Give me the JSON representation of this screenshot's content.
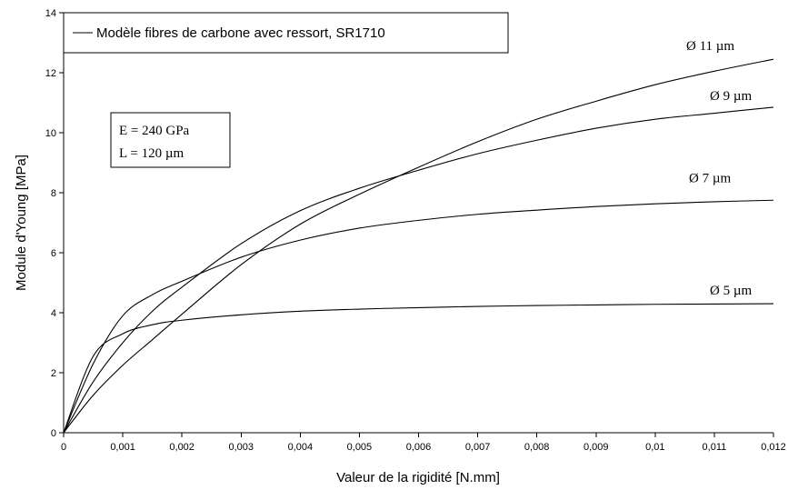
{
  "chart_data": {
    "type": "line",
    "xlabel": "Valeur de la rigidité [N.mm]",
    "ylabel": "Module d'Young [MPa]",
    "xlim": [
      0,
      0.012
    ],
    "ylim": [
      0,
      14
    ],
    "x_ticks": [
      {
        "value": 0,
        "label": "0"
      },
      {
        "value": 0.001,
        "label": "0,001"
      },
      {
        "value": 0.002,
        "label": "0,002"
      },
      {
        "value": 0.003,
        "label": "0,003"
      },
      {
        "value": 0.004,
        "label": "0,004"
      },
      {
        "value": 0.005,
        "label": "0,005"
      },
      {
        "value": 0.006,
        "label": "0,006"
      },
      {
        "value": 0.007,
        "label": "0,007"
      },
      {
        "value": 0.008,
        "label": "0,008"
      },
      {
        "value": 0.009,
        "label": "0,009"
      },
      {
        "value": 0.01,
        "label": "0,01"
      },
      {
        "value": 0.011,
        "label": "0,011"
      },
      {
        "value": 0.012,
        "label": "0,012"
      }
    ],
    "y_ticks": [
      {
        "value": 0,
        "label": "0"
      },
      {
        "value": 2,
        "label": "2"
      },
      {
        "value": 4,
        "label": "4"
      },
      {
        "value": 6,
        "label": "6"
      },
      {
        "value": 8,
        "label": "8"
      },
      {
        "value": 10,
        "label": "10"
      },
      {
        "value": 12,
        "label": "12"
      },
      {
        "value": 14,
        "label": "14"
      }
    ],
    "grid": false,
    "legend": {
      "position": "top-left",
      "entries": [
        "Modèle fibres de carbone avec ressort, SR1710"
      ]
    },
    "annotation_lines": [
      "E = 240 GPa",
      "L = 120 µm"
    ],
    "x": [
      0,
      0.0005,
      0.001,
      0.0015,
      0.002,
      0.003,
      0.004,
      0.005,
      0.006,
      0.007,
      0.008,
      0.009,
      0.01,
      0.011,
      0.012
    ],
    "series": [
      {
        "name": "Ø 5 µm",
        "values": [
          0,
          2.55,
          3.3,
          3.6,
          3.75,
          3.93,
          4.05,
          4.12,
          4.17,
          4.21,
          4.24,
          4.26,
          4.28,
          4.29,
          4.3
        ]
      },
      {
        "name": "Ø 7 µm",
        "values": [
          0,
          2.3,
          3.9,
          4.6,
          5.05,
          5.85,
          6.42,
          6.82,
          7.08,
          7.28,
          7.42,
          7.54,
          7.63,
          7.7,
          7.75
        ]
      },
      {
        "name": "Ø 9 µm",
        "values": [
          0,
          1.7,
          3.0,
          4.05,
          4.85,
          6.3,
          7.4,
          8.15,
          8.75,
          9.3,
          9.75,
          10.15,
          10.45,
          10.65,
          10.85
        ]
      },
      {
        "name": "Ø 11 µm",
        "values": [
          0,
          1.25,
          2.25,
          3.1,
          3.95,
          5.6,
          6.95,
          7.95,
          8.85,
          9.7,
          10.45,
          11.05,
          11.6,
          12.05,
          12.45
        ]
      }
    ]
  }
}
